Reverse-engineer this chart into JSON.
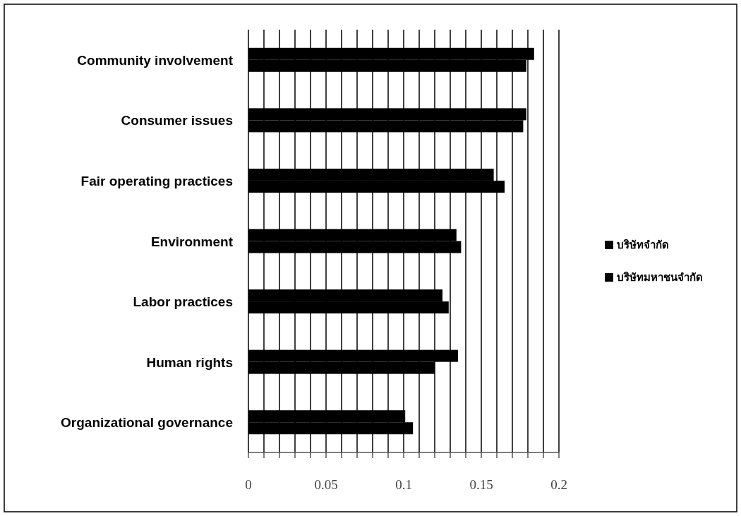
{
  "chart_data": {
    "type": "bar",
    "orientation": "horizontal",
    "categories": [
      "Community involvement",
      "Consumer issues",
      "Fair operating practices",
      "Environment",
      "Labor practices",
      "Human rights",
      "Organizational governance"
    ],
    "series": [
      {
        "name": "บริษัทจำกัด",
        "color": "#000000",
        "values": [
          0.179,
          0.177,
          0.165,
          0.137,
          0.129,
          0.12,
          0.106
        ]
      },
      {
        "name": "บริษัทมหาชนจำกัด",
        "color": "#000000",
        "values": [
          0.184,
          0.179,
          0.158,
          0.134,
          0.125,
          0.135,
          0.101
        ]
      }
    ],
    "xlim": [
      0,
      0.2
    ],
    "xticks": [
      0,
      {
        "value": 0.01,
        "label": null
      },
      {
        "value": 0.02,
        "label": null
      },
      {
        "value": 0.03,
        "label": null
      },
      {
        "value": 0.04,
        "label": null
      },
      0.05,
      {
        "value": 0.06,
        "label": null
      },
      {
        "value": 0.07,
        "label": null
      },
      {
        "value": 0.08,
        "label": null
      },
      {
        "value": 0.09,
        "label": null
      },
      0.1,
      {
        "value": 0.11,
        "label": null
      },
      {
        "value": 0.12,
        "label": null
      },
      {
        "value": 0.13,
        "label": null
      },
      {
        "value": 0.14,
        "label": null
      },
      0.15,
      {
        "value": 0.16,
        "label": null
      },
      {
        "value": 0.17,
        "label": null
      },
      {
        "value": 0.18,
        "label": null
      },
      {
        "value": 0.19,
        "label": null
      },
      0.2
    ],
    "grid": "x",
    "legend": "right"
  }
}
